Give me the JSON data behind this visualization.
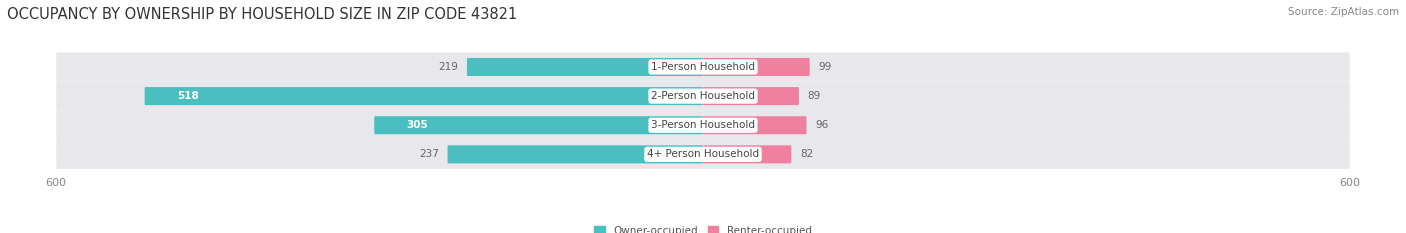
{
  "title": "OCCUPANCY BY OWNERSHIP BY HOUSEHOLD SIZE IN ZIP CODE 43821",
  "source": "Source: ZipAtlas.com",
  "categories": [
    "1-Person Household",
    "2-Person Household",
    "3-Person Household",
    "4+ Person Household"
  ],
  "owner_values": [
    219,
    518,
    305,
    237
  ],
  "renter_values": [
    99,
    89,
    96,
    82
  ],
  "owner_color": "#4BBFBF",
  "renter_color": "#F080A0",
  "bar_bg_color": "#E8E8EC",
  "axis_limit": 600,
  "legend_owner": "Owner-occupied",
  "legend_renter": "Renter-occupied",
  "background_color": "#FFFFFF",
  "title_fontsize": 10.5,
  "source_fontsize": 7.5,
  "label_fontsize": 7.5,
  "tick_fontsize": 8
}
